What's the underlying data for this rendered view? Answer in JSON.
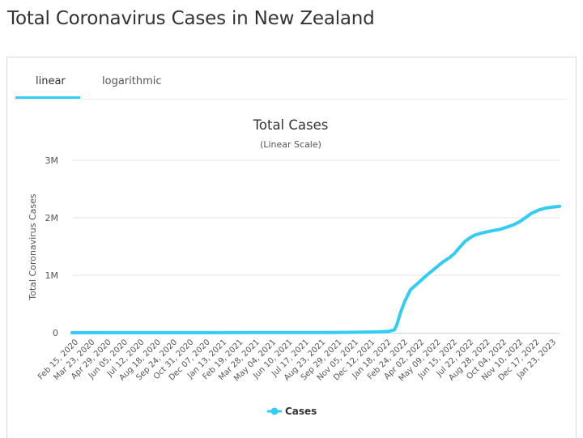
{
  "page": {
    "title": "Total Coronavirus Cases in New Zealand"
  },
  "tabs": [
    {
      "label": "linear",
      "active": true
    },
    {
      "label": "logarithmic",
      "active": false
    }
  ],
  "colors": {
    "accent": "#33ccf5",
    "series": "#33ccf5",
    "grid": "#e6e6e6",
    "axis": "#ccd6eb"
  },
  "chart_data": {
    "type": "line",
    "title": "Total Cases",
    "subtitle": "(Linear Scale)",
    "ylabel": "Total Coronavirus Cases",
    "xlabel": "",
    "ylim": [
      0,
      3000000
    ],
    "grid": true,
    "legend": "bottom-center",
    "y_ticks": [
      {
        "value": 0,
        "label": "0"
      },
      {
        "value": 1000000,
        "label": "1M"
      },
      {
        "value": 2000000,
        "label": "2M"
      },
      {
        "value": 3000000,
        "label": "3M"
      }
    ],
    "x_range": [
      "2020-02-15",
      "2023-03-10"
    ],
    "x_tick_labels": [
      "Feb 15, 2020",
      "Mar 23, 2020",
      "Apr 29, 2020",
      "Jun 05, 2020",
      "Jul 12, 2020",
      "Aug 18, 2020",
      "Sep 24, 2020",
      "Oct 31, 2020",
      "Dec 07, 2020",
      "Jan 13, 2021",
      "Feb 19, 2021",
      "Mar 28, 2021",
      "May 04, 2021",
      "Jun 10, 2021",
      "Jul 17, 2021",
      "Aug 23, 2021",
      "Sep 29, 2021",
      "Nov 05, 2021",
      "Dec 12, 2021",
      "Jan 18, 2022",
      "Feb 24, 2022",
      "Apr 02, 2022",
      "May 09, 2022",
      "Jun 15, 2022",
      "Jul 22, 2022",
      "Aug 28, 2022",
      "Oct 04, 2022",
      "Nov 10, 2022",
      "Dec 17, 2022",
      "Jan 23, 2023"
    ],
    "series": [
      {
        "name": "Cases",
        "points": [
          [
            "2020-02-15",
            0
          ],
          [
            "2020-04-29",
            1500
          ],
          [
            "2020-09-24",
            1800
          ],
          [
            "2021-03-28",
            2500
          ],
          [
            "2021-08-23",
            3500
          ],
          [
            "2021-10-15",
            5000
          ],
          [
            "2021-11-05",
            7000
          ],
          [
            "2021-12-12",
            11000
          ],
          [
            "2022-01-18",
            16000
          ],
          [
            "2022-02-10",
            22000
          ],
          [
            "2022-02-24",
            50000
          ],
          [
            "2022-03-02",
            150000
          ],
          [
            "2022-03-10",
            350000
          ],
          [
            "2022-03-20",
            550000
          ],
          [
            "2022-04-02",
            750000
          ],
          [
            "2022-04-20",
            870000
          ],
          [
            "2022-05-09",
            1000000
          ],
          [
            "2022-05-30",
            1130000
          ],
          [
            "2022-06-15",
            1230000
          ],
          [
            "2022-07-01",
            1310000
          ],
          [
            "2022-07-12",
            1380000
          ],
          [
            "2022-07-22",
            1470000
          ],
          [
            "2022-08-05",
            1590000
          ],
          [
            "2022-08-18",
            1660000
          ],
          [
            "2022-08-28",
            1700000
          ],
          [
            "2022-09-15",
            1740000
          ],
          [
            "2022-10-04",
            1770000
          ],
          [
            "2022-10-25",
            1800000
          ],
          [
            "2022-11-10",
            1840000
          ],
          [
            "2022-11-25",
            1880000
          ],
          [
            "2022-12-10",
            1940000
          ],
          [
            "2022-12-25",
            2020000
          ],
          [
            "2023-01-05",
            2080000
          ],
          [
            "2023-01-23",
            2140000
          ],
          [
            "2023-02-10",
            2175000
          ],
          [
            "2023-03-10",
            2200000
          ]
        ]
      }
    ]
  }
}
